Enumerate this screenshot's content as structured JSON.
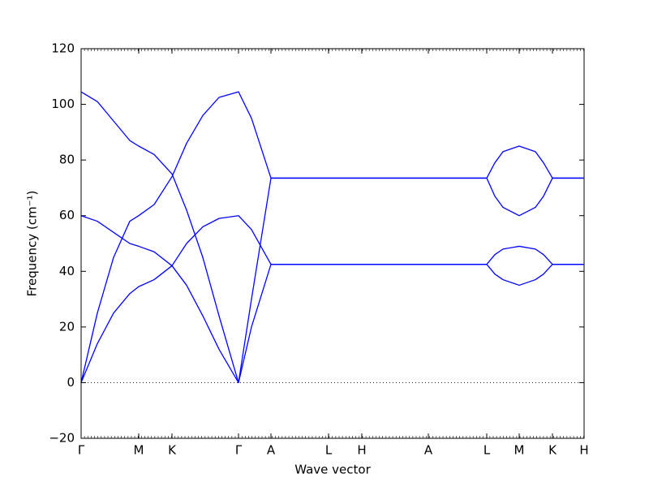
{
  "chart_data": {
    "type": "line",
    "x_label": "Wave vector",
    "y_label": "Frequency (cm⁻¹)",
    "x": [
      0,
      20,
      40,
      60,
      71,
      90,
      112,
      130,
      150,
      170,
      194,
      210,
      234,
      305,
      346,
      428,
      500,
      510,
      520,
      540,
      560,
      570,
      581,
      620
    ],
    "series": [
      {
        "color": "#0000ff",
        "values": [
          104.5,
          101,
          94,
          87,
          85,
          82,
          75,
          62,
          45,
          24,
          0,
          30,
          73.5,
          73.5,
          73.5,
          73.5,
          73.5,
          79,
          83,
          85,
          83,
          79,
          73.5,
          73.5
        ]
      },
      {
        "color": "#0000ff",
        "values": [
          0,
          25,
          45,
          58,
          60,
          64,
          74,
          86,
          96,
          102.5,
          104.5,
          95,
          73.5,
          73.5,
          73.5,
          73.5,
          73.5,
          67,
          63,
          60,
          63,
          67,
          73.5,
          73.5
        ]
      },
      {
        "color": "#0000ff",
        "values": [
          60,
          58,
          54,
          50,
          49,
          47,
          42,
          35,
          24,
          12,
          0,
          20,
          42.5,
          42.5,
          42.5,
          42.5,
          42.5,
          46,
          48,
          49,
          48,
          46,
          42.5,
          42.5
        ]
      },
      {
        "color": "#0000ff",
        "values": [
          0,
          14,
          25,
          32,
          34.5,
          37,
          42,
          50,
          56,
          59,
          60,
          55,
          42.5,
          42.5,
          42.5,
          42.5,
          42.5,
          39,
          37,
          35,
          37,
          39,
          42.5,
          42.5
        ]
      }
    ],
    "xlim": [
      0,
      620
    ],
    "xticks": [
      {
        "value": 0,
        "label": "Γ"
      },
      {
        "value": 71,
        "label": "M"
      },
      {
        "value": 112,
        "label": "K"
      },
      {
        "value": 194,
        "label": "Γ"
      },
      {
        "value": 234,
        "label": "A"
      },
      {
        "value": 305,
        "label": "L"
      },
      {
        "value": 346,
        "label": "H"
      },
      {
        "value": 428,
        "label": "A"
      },
      {
        "value": 500,
        "label": "L"
      },
      {
        "value": 540,
        "label": "M"
      },
      {
        "value": 581,
        "label": "K"
      },
      {
        "value": 620,
        "label": "H"
      }
    ],
    "ylim": [
      -20,
      120
    ],
    "yticks": [
      {
        "value": -20,
        "label": "−20"
      },
      0,
      20,
      40,
      60,
      80,
      100,
      120
    ]
  }
}
